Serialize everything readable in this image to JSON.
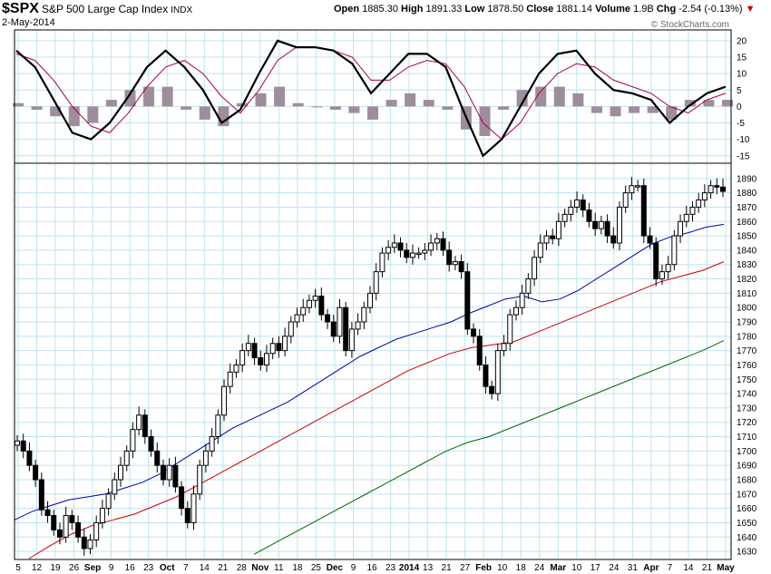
{
  "header": {
    "symbol": "$SPX",
    "name": "S&P 500 Large Cap Index",
    "exchange": "INDX",
    "date": "2-May-2014",
    "open_label": "Open",
    "open": "1885.30",
    "high_label": "High",
    "high": "1891.33",
    "low_label": "Low",
    "low": "1878.50",
    "close_label": "Close",
    "close": "1881.14",
    "volume_label": "Volume",
    "volume": "1.9B",
    "chg_label": "Chg",
    "chg": "-2.54 (-0.13%)",
    "chg_arrow_color": "#cc0000",
    "watermark": "© StockCharts.com"
  },
  "chart_data": {
    "type": "line",
    "price_panel": {
      "ylim": [
        1625,
        1900
      ],
      "yticks": [
        1630,
        1640,
        1650,
        1660,
        1670,
        1680,
        1690,
        1700,
        1710,
        1720,
        1730,
        1740,
        1750,
        1760,
        1770,
        1780,
        1790,
        1800,
        1810,
        1820,
        1830,
        1840,
        1850,
        1860,
        1870,
        1880,
        1890
      ],
      "grid": true,
      "candles_close_approx": [
        1707,
        1700,
        1690,
        1680,
        1659,
        1655,
        1645,
        1640,
        1655,
        1650,
        1640,
        1632,
        1638,
        1650,
        1660,
        1670,
        1680,
        1690,
        1700,
        1715,
        1725,
        1710,
        1700,
        1690,
        1680,
        1690,
        1675,
        1660,
        1650,
        1670,
        1690,
        1700,
        1710,
        1725,
        1745,
        1755,
        1760,
        1770,
        1775,
        1765,
        1760,
        1768,
        1775,
        1770,
        1780,
        1790,
        1795,
        1800,
        1805,
        1808,
        1795,
        1790,
        1780,
        1800,
        1770,
        1785,
        1790,
        1800,
        1810,
        1825,
        1838,
        1842,
        1845,
        1840,
        1835,
        1838,
        1838,
        1840,
        1845,
        1848,
        1840,
        1830,
        1832,
        1825,
        1785,
        1780,
        1760,
        1745,
        1740,
        1770,
        1775,
        1795,
        1800,
        1810,
        1820,
        1835,
        1845,
        1850,
        1848,
        1860,
        1865,
        1870,
        1875,
        1868,
        1860,
        1855,
        1860,
        1850,
        1845,
        1870,
        1880,
        1885,
        1885,
        1850,
        1845,
        1820,
        1825,
        1830,
        1850,
        1860,
        1865,
        1870,
        1875,
        1880,
        1885,
        1884,
        1881
      ],
      "series": [
        {
          "name": "",
          "color": "#0000aa",
          "values": [
            1652,
            1658,
            1662,
            1666,
            1668,
            1670,
            1674,
            1678,
            1684,
            1692,
            1700,
            1708,
            1716,
            1722,
            1728,
            1734,
            1742,
            1750,
            1758,
            1766,
            1772,
            1778,
            1782,
            1786,
            1790,
            1796,
            1801,
            1806,
            1808,
            1804,
            1806,
            1812,
            1820,
            1828,
            1836,
            1844,
            1849,
            1852,
            1856,
            1858
          ]
        },
        {
          "name": "",
          "color": "#cc0000",
          "values": [
            1625,
            1634,
            1642,
            1648,
            1652,
            1656,
            1662,
            1668,
            1676,
            1684,
            1692,
            1700,
            1708,
            1716,
            1724,
            1732,
            1740,
            1748,
            1756,
            1762,
            1768,
            1772,
            1774,
            1776,
            1782,
            1788,
            1794,
            1800,
            1806,
            1812,
            1818,
            1822,
            1826,
            1832
          ]
        },
        {
          "name": "",
          "color": "#006600",
          "values": [
            1628,
            1636,
            1644,
            1652,
            1660,
            1668,
            1676,
            1684,
            1692,
            1700,
            1706,
            1710,
            1716,
            1722,
            1728,
            1734,
            1740,
            1746,
            1752,
            1758,
            1764,
            1770,
            1777
          ]
        }
      ]
    },
    "indicator_panel": {
      "ylim": [
        -17,
        23
      ],
      "yticks": [
        20,
        15,
        10,
        5,
        0,
        -5,
        -10,
        -15
      ],
      "series": [
        {
          "name": "",
          "color": "#000000",
          "values": [
            17,
            12,
            2,
            -8,
            -10,
            -5,
            3,
            12,
            17,
            12,
            5,
            -5,
            -1,
            10,
            20,
            18,
            18,
            17,
            13,
            4,
            10,
            16,
            16,
            12,
            -2,
            -15,
            -10,
            0,
            10,
            16,
            17,
            10,
            5,
            4,
            2,
            -5,
            0,
            4,
            6
          ]
        },
        {
          "name": "",
          "color": "#aa0044",
          "values": [
            16,
            14,
            8,
            0,
            -6,
            -8,
            -2,
            6,
            12,
            14,
            10,
            3,
            -2,
            5,
            14,
            18,
            18,
            17,
            15,
            8,
            8,
            12,
            14,
            13,
            6,
            -5,
            -10,
            -5,
            4,
            10,
            13,
            12,
            8,
            6,
            4,
            0,
            -2,
            2,
            4
          ]
        },
        {
          "name": "",
          "color": "#9e8d9c",
          "values": [
            1,
            -1,
            -3,
            -6,
            -5,
            2,
            5,
            6,
            6,
            -1,
            -4,
            -6,
            1,
            4,
            6,
            1,
            0,
            -1,
            -2,
            -4,
            2,
            4,
            2,
            -1,
            -7,
            -9,
            -1,
            5,
            6,
            6,
            4,
            -2,
            -3,
            -2,
            -2,
            -4,
            2,
            2,
            2
          ]
        }
      ]
    },
    "x_tick_labels": [
      "5",
      "12",
      "19",
      "26",
      "Sep",
      "9",
      "16",
      "23",
      "Oct",
      "7",
      "14",
      "21",
      "28",
      "Nov",
      "11",
      "18",
      "25",
      "Dec",
      "9",
      "16",
      "23",
      "2014",
      "13",
      "21",
      "27",
      "Feb",
      "10",
      "18",
      "24",
      "Mar",
      "10",
      "17",
      "24",
      "31",
      "Apr",
      "7",
      "14",
      "21",
      "May"
    ]
  }
}
